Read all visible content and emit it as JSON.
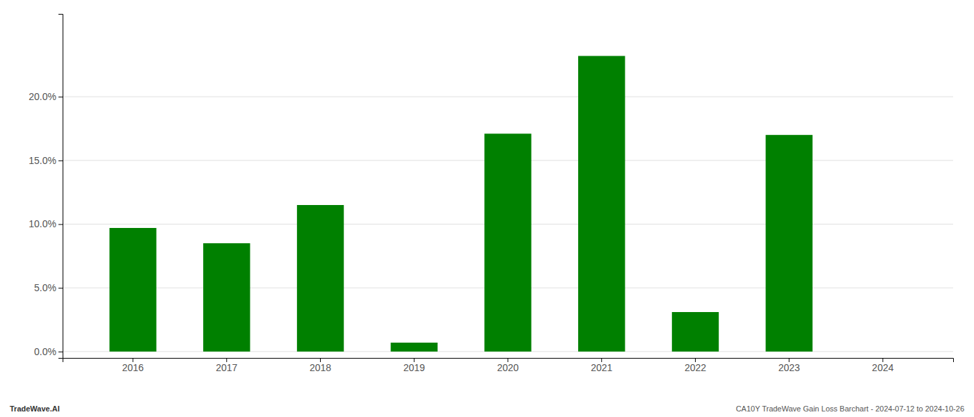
{
  "chart_data": {
    "type": "bar",
    "categories": [
      "2016",
      "2017",
      "2018",
      "2019",
      "2020",
      "2021",
      "2022",
      "2023",
      "2024"
    ],
    "values": [
      0.097,
      0.085,
      0.115,
      0.007,
      0.171,
      0.232,
      0.031,
      0.17,
      0.0
    ],
    "color": "#008000",
    "ylim": [
      -0.005,
      0.265
    ],
    "yticks": [
      {
        "value": 0.0,
        "label": "0.0%"
      },
      {
        "value": 0.05,
        "label": "5.0%"
      },
      {
        "value": 0.1,
        "label": "10.0%"
      },
      {
        "value": 0.15,
        "label": "15.0%"
      },
      {
        "value": 0.2,
        "label": "20.0%"
      }
    ],
    "grid": true,
    "annotations": [
      "TradeWave.AI",
      "CA10Y TradeWave Gain Loss Barchart - 2024-07-12 to 2024-10-26"
    ]
  }
}
